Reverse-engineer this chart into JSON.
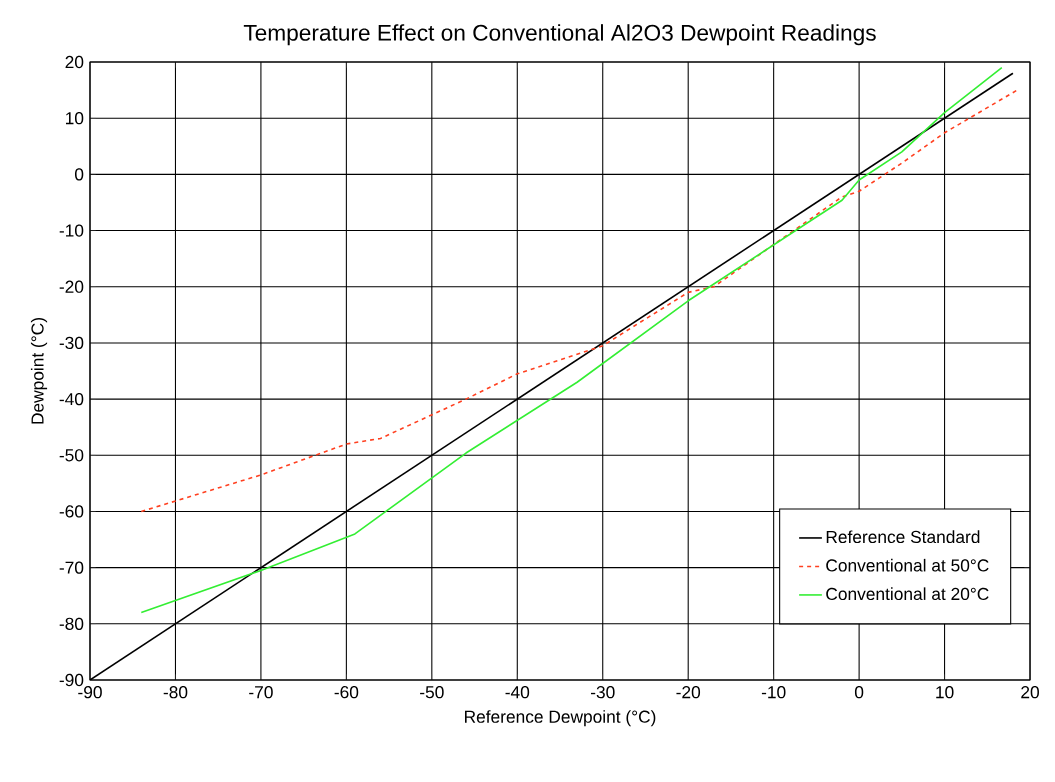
{
  "chart_data": {
    "type": "line",
    "title": "Temperature Effect on Conventional Al2O3 Dewpoint Readings",
    "xlabel": "Reference Dewpoint (°C)",
    "ylabel": "Dewpoint (°C)",
    "xlim": [
      -90,
      20
    ],
    "ylim": [
      -90,
      20
    ],
    "xticks": [
      -90,
      -80,
      -70,
      -60,
      -50,
      -40,
      -30,
      -20,
      -10,
      0,
      10,
      20
    ],
    "yticks": [
      -90,
      -80,
      -70,
      -60,
      -50,
      -40,
      -30,
      -20,
      -10,
      0,
      10,
      20
    ],
    "grid": true,
    "legend": "bottom right",
    "series": [
      {
        "name": "Reference Standard",
        "color": "#000000",
        "line_style": "solid",
        "x": [
          -90,
          18
        ],
        "values": [
          -90,
          18
        ]
      },
      {
        "name": "Conventional at 50°C",
        "color": "#ff4020",
        "line_style": "dashed",
        "x": [
          -84,
          -70,
          -60,
          -56,
          -46,
          -40,
          -30,
          -20,
          -17,
          -10,
          -2,
          0,
          5,
          10,
          18.5
        ],
        "values": [
          -60,
          -53.5,
          -48,
          -47,
          -40,
          -35.5,
          -30.5,
          -21,
          -20,
          -12.5,
          -4,
          -3,
          2,
          7.4,
          15
        ]
      },
      {
        "name": "Conventional at 20°C",
        "color": "#33ee33",
        "line_style": "solid",
        "x": [
          -84,
          -70,
          -59,
          -46,
          -33,
          -20,
          -2,
          0,
          5,
          10,
          16.7
        ],
        "values": [
          -78,
          -70.5,
          -64,
          -49.6,
          -37,
          -22.5,
          -4.6,
          -1,
          4,
          11,
          19
        ]
      }
    ]
  }
}
